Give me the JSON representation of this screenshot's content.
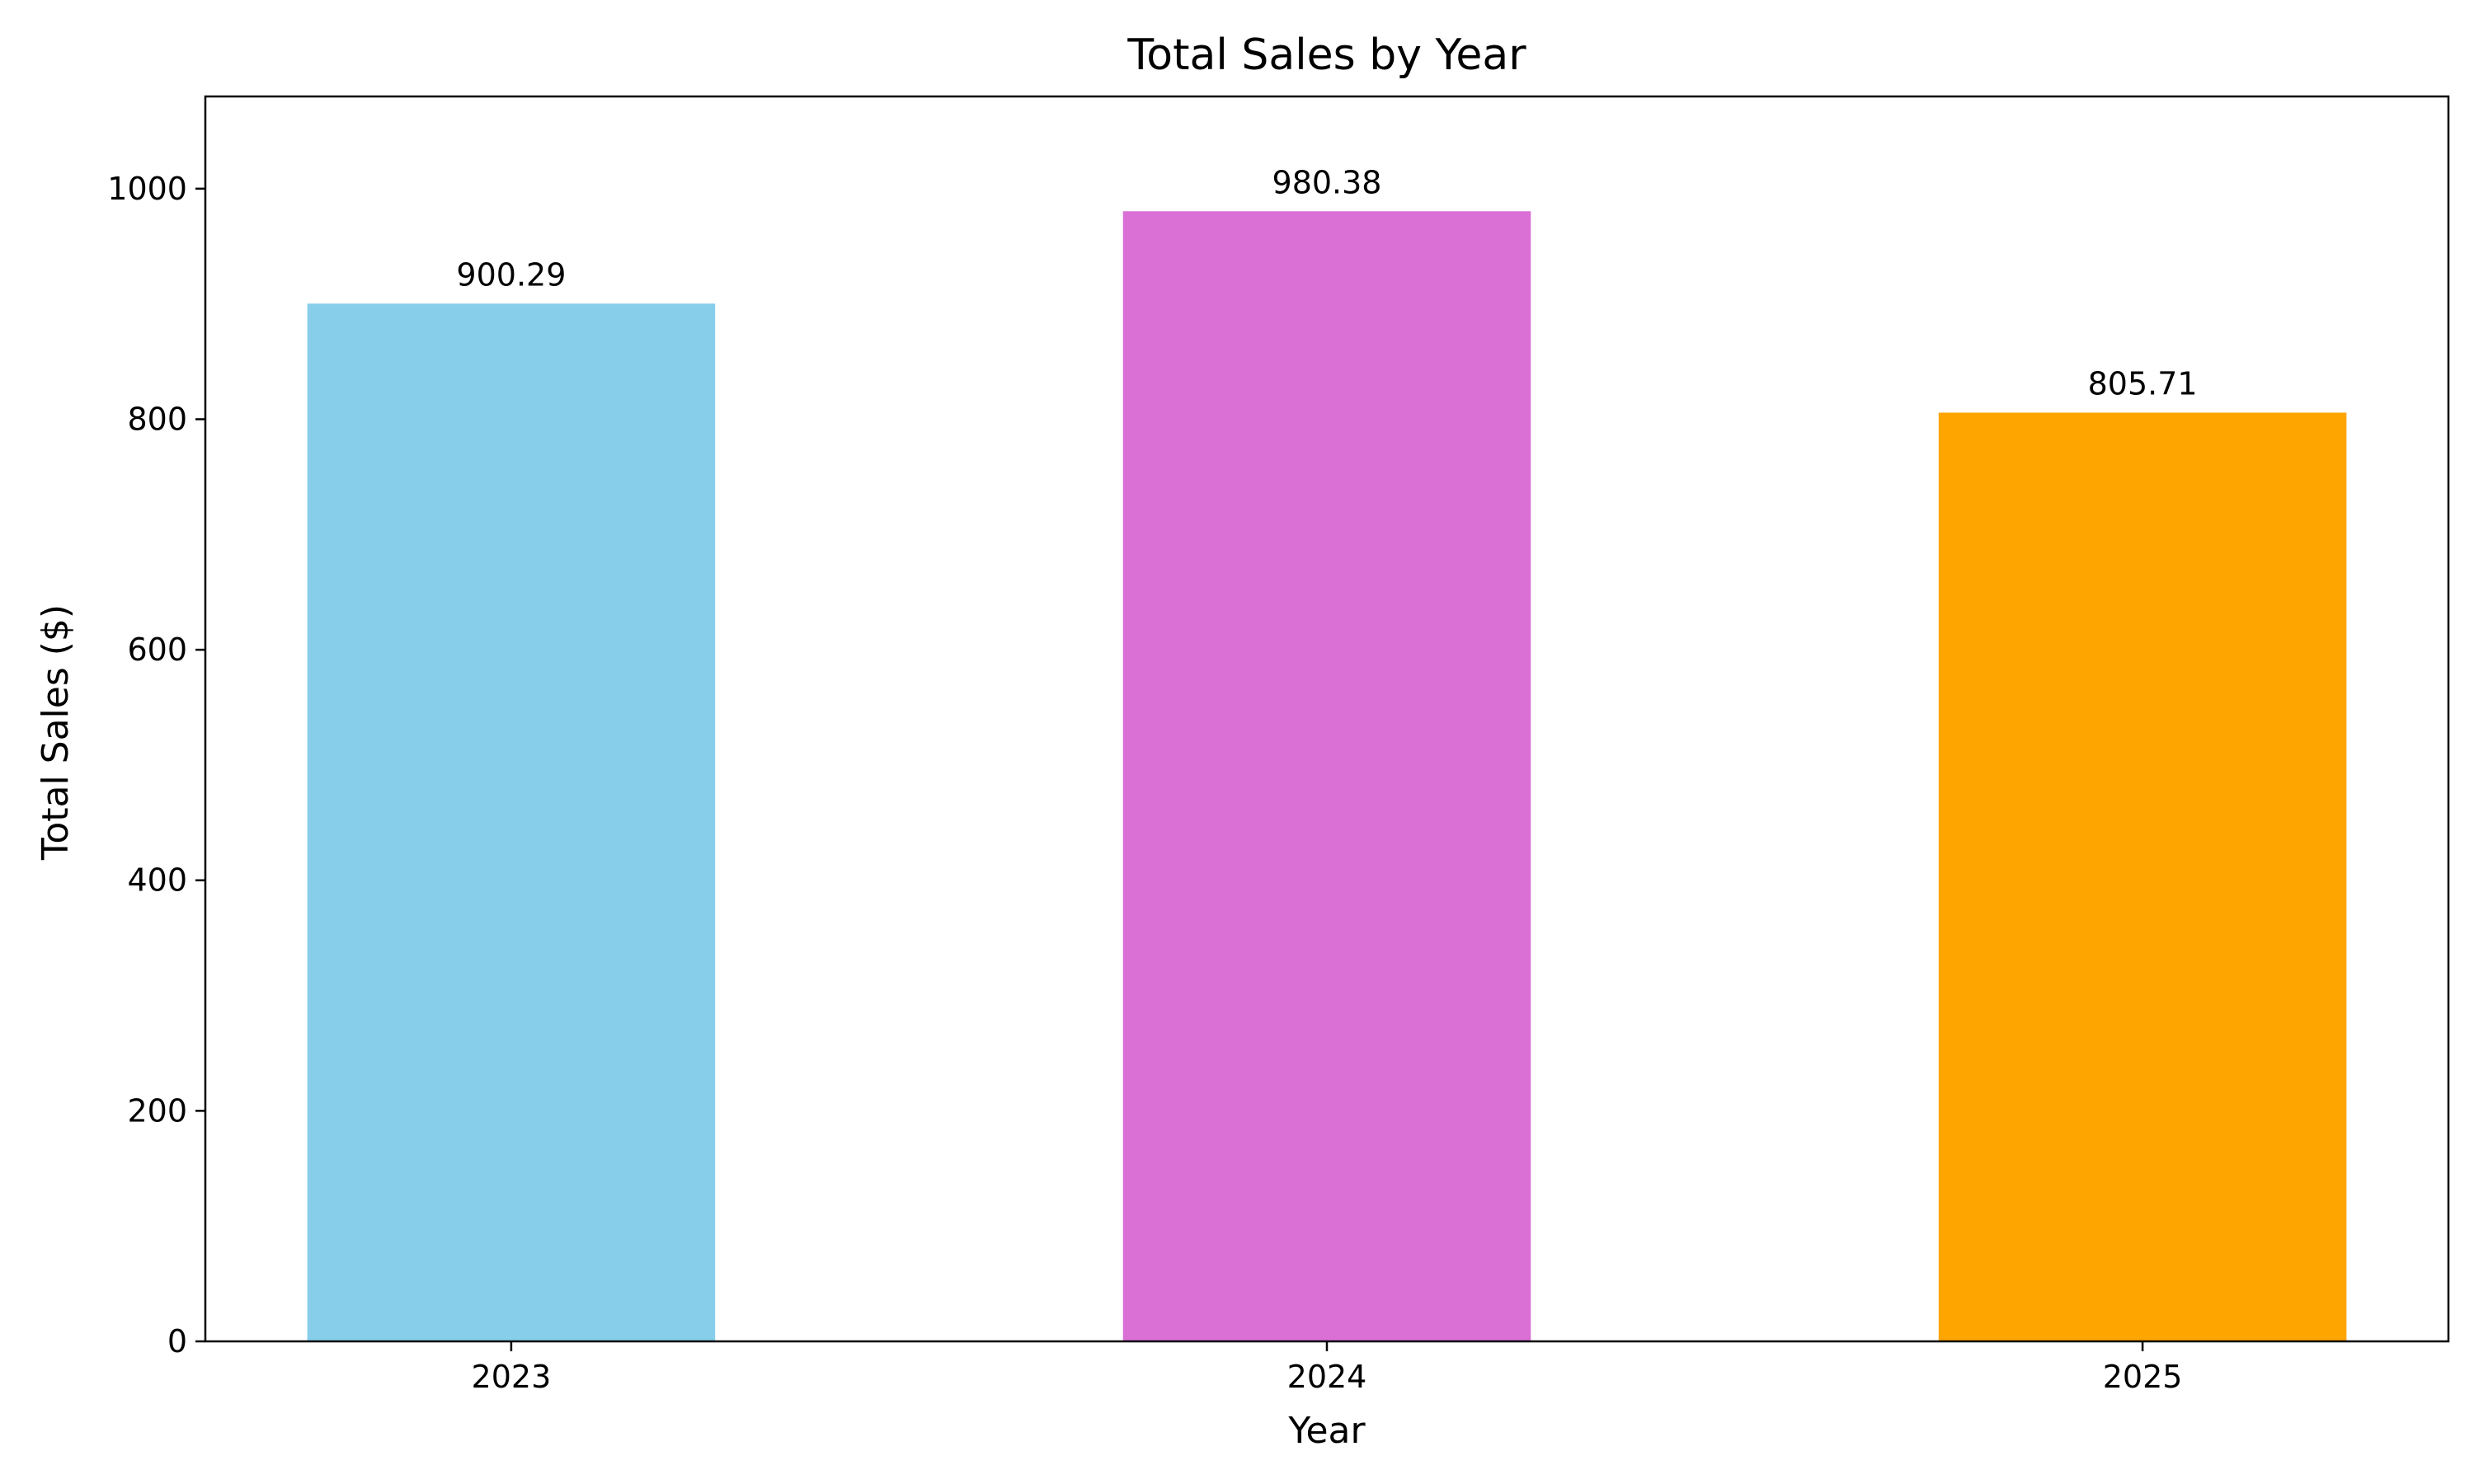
{
  "chart_data": {
    "type": "bar",
    "title": "Total Sales by Year",
    "xlabel": "Year",
    "ylabel": "Total Sales ($)",
    "categories": [
      "2023",
      "2024",
      "2025"
    ],
    "values": [
      900.29,
      980.38,
      805.71
    ],
    "value_labels": [
      "900.29",
      "980.38",
      "805.71"
    ],
    "colors": [
      "#87ceeb",
      "#da70d6",
      "#ffa500"
    ],
    "ylim": [
      0,
      1080
    ],
    "yticks": [
      0,
      200,
      400,
      600,
      800,
      1000
    ],
    "ytick_labels": [
      "0",
      "200",
      "400",
      "600",
      "800",
      "1000"
    ],
    "grid": false,
    "legend": "none"
  }
}
